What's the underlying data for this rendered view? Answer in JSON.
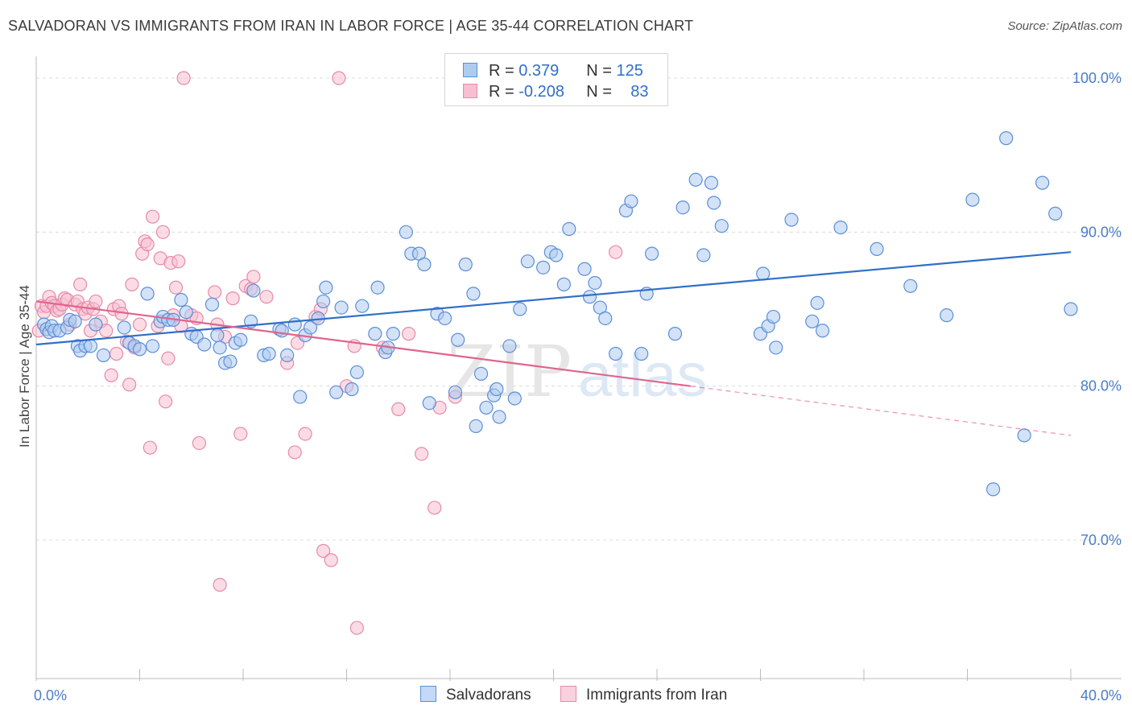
{
  "title": "SALVADORAN VS IMMIGRANTS FROM IRAN IN LABOR FORCE | AGE 35-44 CORRELATION CHART",
  "source": "Source: ZipAtlas.com",
  "colors": {
    "blue_fill": "#aecbf0",
    "blue_stroke": "#5b8fd6",
    "blue_line": "#2f6fca",
    "pink_fill": "#f7bfd0",
    "pink_stroke": "#e68aa9",
    "pink_line": "#e0648c",
    "tick_text": "#4a7cc9",
    "grid": "#dcdcdc"
  },
  "legend": {
    "row1": {
      "r_label": "R = ",
      "r_value": "0.379",
      "n_label": "N = ",
      "n_value": "125"
    },
    "row2": {
      "r_label": "R = ",
      "r_value": "-0.208",
      "n_label": "N = ",
      "n_value": "83"
    }
  },
  "bottom_legend": {
    "series1": "Salvadorans",
    "series2": "Immigrants from Iran"
  },
  "watermark": {
    "part1": "ZIP",
    "part2": "atlas"
  },
  "chart_data": {
    "type": "scatter",
    "title": "SALVADORAN VS IMMIGRANTS FROM IRAN IN LABOR FORCE | AGE 35-44 CORRELATION CHART",
    "xlabel": "",
    "ylabel": "In Labor Force | Age 35-44",
    "xlim": [
      0,
      40
    ],
    "ylim": [
      61.5,
      101.5
    ],
    "x_tick_labels": [
      "0.0%",
      "40.0%"
    ],
    "y_ticks": [
      70,
      80,
      90,
      100
    ],
    "y_tick_labels": [
      "70.0%",
      "80.0%",
      "90.0%",
      "100.0%"
    ],
    "grid": "horizontal dashed",
    "legend_position": "top-center",
    "series": [
      {
        "name": "Salvadorans",
        "r": 0.379,
        "n": 125,
        "trend": {
          "x": [
            0,
            40
          ],
          "y": [
            82.7,
            88.7
          ]
        },
        "points": [
          [
            0.3,
            84.0
          ],
          [
            0.4,
            83.7
          ],
          [
            0.5,
            83.5
          ],
          [
            0.6,
            83.9
          ],
          [
            0.7,
            83.6
          ],
          [
            0.9,
            83.6
          ],
          [
            1.2,
            83.8
          ],
          [
            1.3,
            84.3
          ],
          [
            1.5,
            84.2
          ],
          [
            1.6,
            82.6
          ],
          [
            1.7,
            82.3
          ],
          [
            1.9,
            82.6
          ],
          [
            2.1,
            82.6
          ],
          [
            2.3,
            84.0
          ],
          [
            2.6,
            82.0
          ],
          [
            3.4,
            83.8
          ],
          [
            3.6,
            82.8
          ],
          [
            3.8,
            82.6
          ],
          [
            4.0,
            82.4
          ],
          [
            4.3,
            86.0
          ],
          [
            4.5,
            82.6
          ],
          [
            4.8,
            84.2
          ],
          [
            4.9,
            84.5
          ],
          [
            5.1,
            84.3
          ],
          [
            5.3,
            84.3
          ],
          [
            5.6,
            85.6
          ],
          [
            5.8,
            84.8
          ],
          [
            6.0,
            83.4
          ],
          [
            6.2,
            83.2
          ],
          [
            6.5,
            82.7
          ],
          [
            6.8,
            85.3
          ],
          [
            7.0,
            83.3
          ],
          [
            7.1,
            82.5
          ],
          [
            7.3,
            81.5
          ],
          [
            7.5,
            81.6
          ],
          [
            7.7,
            82.8
          ],
          [
            7.9,
            83.0
          ],
          [
            8.3,
            84.2
          ],
          [
            8.4,
            86.2
          ],
          [
            8.8,
            82.0
          ],
          [
            9.0,
            82.1
          ],
          [
            9.4,
            83.7
          ],
          [
            9.5,
            83.6
          ],
          [
            9.7,
            82.0
          ],
          [
            10.0,
            84.0
          ],
          [
            10.2,
            79.3
          ],
          [
            10.4,
            83.3
          ],
          [
            10.6,
            83.8
          ],
          [
            10.9,
            84.4
          ],
          [
            11.1,
            85.5
          ],
          [
            11.2,
            86.4
          ],
          [
            11.6,
            79.6
          ],
          [
            11.8,
            85.1
          ],
          [
            12.2,
            79.8
          ],
          [
            12.4,
            80.9
          ],
          [
            12.6,
            85.2
          ],
          [
            13.1,
            83.4
          ],
          [
            13.2,
            86.4
          ],
          [
            13.5,
            82.2
          ],
          [
            13.6,
            82.5
          ],
          [
            13.8,
            83.4
          ],
          [
            14.3,
            90.0
          ],
          [
            14.5,
            88.6
          ],
          [
            14.8,
            88.6
          ],
          [
            15.0,
            87.9
          ],
          [
            15.2,
            78.9
          ],
          [
            15.5,
            84.7
          ],
          [
            15.8,
            84.4
          ],
          [
            16.2,
            79.6
          ],
          [
            16.3,
            83.0
          ],
          [
            16.6,
            87.9
          ],
          [
            16.9,
            86.0
          ],
          [
            17.0,
            77.4
          ],
          [
            17.2,
            80.8
          ],
          [
            17.4,
            78.6
          ],
          [
            17.7,
            79.4
          ],
          [
            17.8,
            79.8
          ],
          [
            17.9,
            78.0
          ],
          [
            18.3,
            82.6
          ],
          [
            18.5,
            79.2
          ],
          [
            18.7,
            85.0
          ],
          [
            19.0,
            88.1
          ],
          [
            19.6,
            87.7
          ],
          [
            19.9,
            88.7
          ],
          [
            20.1,
            88.5
          ],
          [
            20.4,
            86.6
          ],
          [
            20.6,
            90.2
          ],
          [
            21.2,
            87.6
          ],
          [
            21.4,
            85.8
          ],
          [
            21.6,
            86.7
          ],
          [
            21.8,
            85.1
          ],
          [
            22.0,
            84.4
          ],
          [
            22.4,
            82.1
          ],
          [
            22.8,
            91.4
          ],
          [
            23.0,
            92.0
          ],
          [
            23.4,
            82.1
          ],
          [
            23.6,
            86.0
          ],
          [
            23.8,
            88.6
          ],
          [
            24.7,
            83.4
          ],
          [
            25.0,
            91.6
          ],
          [
            25.5,
            93.4
          ],
          [
            25.8,
            88.5
          ],
          [
            26.1,
            93.2
          ],
          [
            26.2,
            91.9
          ],
          [
            26.5,
            90.4
          ],
          [
            28.0,
            83.4
          ],
          [
            28.1,
            87.3
          ],
          [
            28.3,
            83.9
          ],
          [
            28.5,
            84.5
          ],
          [
            28.6,
            82.5
          ],
          [
            29.2,
            90.8
          ],
          [
            30.0,
            84.2
          ],
          [
            30.2,
            85.4
          ],
          [
            30.4,
            83.6
          ],
          [
            31.1,
            90.3
          ],
          [
            32.5,
            88.9
          ],
          [
            33.8,
            86.5
          ],
          [
            35.2,
            84.6
          ],
          [
            36.2,
            92.1
          ],
          [
            37.0,
            73.3
          ],
          [
            37.5,
            96.1
          ],
          [
            38.2,
            76.8
          ],
          [
            38.9,
            93.2
          ],
          [
            39.4,
            91.2
          ],
          [
            40.0,
            85.0
          ]
        ]
      },
      {
        "name": "Immigrants from Iran",
        "r": -0.208,
        "n": 83,
        "trend": {
          "x": [
            0,
            40
          ],
          "y": [
            85.5,
            76.8
          ]
        },
        "trend_solid_until_x": 25.3,
        "points": [
          [
            0.1,
            83.6
          ],
          [
            0.2,
            85.2
          ],
          [
            0.3,
            84.8
          ],
          [
            0.4,
            85.2
          ],
          [
            0.5,
            85.8
          ],
          [
            0.6,
            85.4
          ],
          [
            0.7,
            85.2
          ],
          [
            0.8,
            84.9
          ],
          [
            0.9,
            85.0
          ],
          [
            1.0,
            85.3
          ],
          [
            1.1,
            85.7
          ],
          [
            1.2,
            85.6
          ],
          [
            1.3,
            84.0
          ],
          [
            1.5,
            85.3
          ],
          [
            1.6,
            85.5
          ],
          [
            1.7,
            86.6
          ],
          [
            1.8,
            85.0
          ],
          [
            1.9,
            84.7
          ],
          [
            2.0,
            85.1
          ],
          [
            2.1,
            83.6
          ],
          [
            2.2,
            85.0
          ],
          [
            2.3,
            85.5
          ],
          [
            2.5,
            84.2
          ],
          [
            2.7,
            83.6
          ],
          [
            2.9,
            80.7
          ],
          [
            3.0,
            85.0
          ],
          [
            3.1,
            82.1
          ],
          [
            3.2,
            85.2
          ],
          [
            3.3,
            84.7
          ],
          [
            3.5,
            82.9
          ],
          [
            3.6,
            80.1
          ],
          [
            3.7,
            86.6
          ],
          [
            3.8,
            82.5
          ],
          [
            4.0,
            84.0
          ],
          [
            4.1,
            88.6
          ],
          [
            4.2,
            89.4
          ],
          [
            4.3,
            89.2
          ],
          [
            4.4,
            76.0
          ],
          [
            4.5,
            91.0
          ],
          [
            4.7,
            83.9
          ],
          [
            4.8,
            88.3
          ],
          [
            4.9,
            90.0
          ],
          [
            5.0,
            79.0
          ],
          [
            5.1,
            81.8
          ],
          [
            5.2,
            88.0
          ],
          [
            5.3,
            84.6
          ],
          [
            5.4,
            86.4
          ],
          [
            5.5,
            88.1
          ],
          [
            5.6,
            83.9
          ],
          [
            5.7,
            100.0
          ],
          [
            6.0,
            84.6
          ],
          [
            6.2,
            84.4
          ],
          [
            6.3,
            76.3
          ],
          [
            6.9,
            86.1
          ],
          [
            7.0,
            84.0
          ],
          [
            7.1,
            67.1
          ],
          [
            7.3,
            83.2
          ],
          [
            7.6,
            85.7
          ],
          [
            7.9,
            76.9
          ],
          [
            8.1,
            86.5
          ],
          [
            8.3,
            86.3
          ],
          [
            8.4,
            87.1
          ],
          [
            8.9,
            85.8
          ],
          [
            9.7,
            81.5
          ],
          [
            10.0,
            75.7
          ],
          [
            10.1,
            82.8
          ],
          [
            10.4,
            76.9
          ],
          [
            10.8,
            84.5
          ],
          [
            11.0,
            85.0
          ],
          [
            11.1,
            69.3
          ],
          [
            11.4,
            68.7
          ],
          [
            11.7,
            100.0
          ],
          [
            12.0,
            80.0
          ],
          [
            12.3,
            82.6
          ],
          [
            12.4,
            64.3
          ],
          [
            13.4,
            82.5
          ],
          [
            14.0,
            78.5
          ],
          [
            14.4,
            83.4
          ],
          [
            14.9,
            75.6
          ],
          [
            15.4,
            72.1
          ],
          [
            15.6,
            78.6
          ],
          [
            16.2,
            79.3
          ],
          [
            22.4,
            88.7
          ]
        ]
      }
    ]
  }
}
